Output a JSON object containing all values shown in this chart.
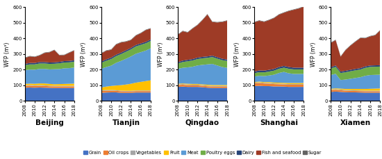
{
  "years": [
    2008,
    2009,
    2010,
    2011,
    2012,
    2013,
    2014,
    2015,
    2016,
    2017,
    2018
  ],
  "cities": [
    "Beijing",
    "Tianjin",
    "Qingdao",
    "Shanghai",
    "Xiamen"
  ],
  "categories": [
    "Grain",
    "Oil crops",
    "Vegetables",
    "Fruit",
    "Meat",
    "Poultry eggs",
    "Dairy",
    "Fish and seafood",
    "Sugar"
  ],
  "colors": [
    "#4472C4",
    "#ED7D31",
    "#A5A5A5",
    "#FFC000",
    "#5B9BD5",
    "#70AD47",
    "#264478",
    "#9E3B26",
    "#636363"
  ],
  "ylabel": "WFP (m³)",
  "data": {
    "Beijing": {
      "Grain": [
        85,
        86,
        85,
        86,
        85,
        84,
        83,
        83,
        83,
        83,
        83
      ],
      "Oil crops": [
        12,
        12,
        11,
        11,
        11,
        10,
        10,
        10,
        10,
        10,
        10
      ],
      "Vegetables": [
        4,
        4,
        4,
        4,
        4,
        4,
        4,
        4,
        4,
        4,
        4
      ],
      "Fruit": [
        8,
        9,
        10,
        11,
        12,
        11,
        10,
        11,
        12,
        13,
        14
      ],
      "Meat": [
        88,
        90,
        90,
        93,
        93,
        93,
        96,
        96,
        100,
        100,
        103
      ],
      "Poultry eggs": [
        32,
        33,
        34,
        35,
        35,
        35,
        35,
        37,
        37,
        37,
        37
      ],
      "Dairy": [
        8,
        9,
        9,
        9,
        9,
        9,
        9,
        9,
        9,
        9,
        9
      ],
      "Fish and seafood": [
        38,
        42,
        38,
        42,
        58,
        65,
        78,
        42,
        38,
        52,
        62
      ],
      "Sugar": [
        3,
        3,
        3,
        3,
        3,
        3,
        3,
        3,
        3,
        3,
        3
      ]
    },
    "Tianjin": {
      "Grain": [
        52,
        54,
        55,
        55,
        52,
        52,
        52,
        54,
        54,
        54,
        54
      ],
      "Oil crops": [
        12,
        12,
        11,
        10,
        10,
        9,
        9,
        9,
        9,
        9,
        9
      ],
      "Vegetables": [
        4,
        4,
        4,
        4,
        4,
        4,
        4,
        4,
        4,
        4,
        4
      ],
      "Fruit": [
        18,
        22,
        26,
        30,
        35,
        40,
        45,
        50,
        55,
        60,
        65
      ],
      "Meat": [
        120,
        125,
        130,
        145,
        155,
        165,
        175,
        185,
        190,
        195,
        205
      ],
      "Poultry eggs": [
        38,
        40,
        42,
        43,
        44,
        45,
        45,
        47,
        47,
        47,
        47
      ],
      "Dairy": [
        8,
        9,
        9,
        9,
        9,
        9,
        9,
        9,
        9,
        9,
        9
      ],
      "Fish and seafood": [
        52,
        55,
        50,
        65,
        65,
        55,
        50,
        60,
        65,
        75,
        70
      ],
      "Sugar": [
        3,
        3,
        3,
        3,
        3,
        3,
        3,
        3,
        3,
        3,
        3
      ]
    },
    "Qingdao": {
      "Grain": [
        90,
        92,
        90,
        90,
        90,
        88,
        85,
        83,
        83,
        83,
        83
      ],
      "Oil crops": [
        12,
        12,
        11,
        10,
        10,
        9,
        9,
        9,
        9,
        9,
        9
      ],
      "Vegetables": [
        4,
        4,
        4,
        4,
        4,
        4,
        4,
        4,
        4,
        4,
        4
      ],
      "Fruit": [
        4,
        4,
        5,
        5,
        5,
        5,
        6,
        6,
        6,
        6,
        6
      ],
      "Meat": [
        95,
        100,
        105,
        110,
        118,
        125,
        130,
        135,
        125,
        115,
        110
      ],
      "Poultry eggs": [
        35,
        37,
        39,
        40,
        41,
        42,
        42,
        44,
        44,
        44,
        44
      ],
      "Dairy": [
        8,
        9,
        9,
        9,
        9,
        9,
        9,
        9,
        9,
        9,
        9
      ],
      "Fish and seafood": [
        175,
        188,
        175,
        195,
        208,
        235,
        268,
        215,
        222,
        235,
        248
      ],
      "Sugar": [
        3,
        3,
        3,
        3,
        3,
        3,
        3,
        3,
        3,
        3,
        3
      ]
    },
    "Shanghai": {
      "Grain": [
        95,
        97,
        95,
        95,
        93,
        93,
        92,
        90,
        90,
        90,
        90
      ],
      "Oil crops": [
        18,
        18,
        17,
        16,
        15,
        14,
        14,
        14,
        14,
        14,
        14
      ],
      "Vegetables": [
        4,
        4,
        4,
        4,
        4,
        4,
        4,
        4,
        4,
        4,
        4
      ],
      "Fruit": [
        4,
        5,
        5,
        6,
        6,
        6,
        6,
        7,
        7,
        7,
        7
      ],
      "Meat": [
        35,
        37,
        38,
        42,
        50,
        62,
        70,
        62,
        58,
        58,
        58
      ],
      "Poultry eggs": [
        22,
        23,
        24,
        25,
        26,
        27,
        27,
        29,
        29,
        29,
        29
      ],
      "Dairy": [
        10,
        11,
        11,
        11,
        11,
        11,
        11,
        11,
        11,
        11,
        11
      ],
      "Fish and seafood": [
        315,
        318,
        312,
        318,
        325,
        335,
        340,
        358,
        370,
        378,
        390
      ],
      "Sugar": [
        3,
        3,
        3,
        3,
        3,
        3,
        3,
        3,
        3,
        3,
        3
      ]
    },
    "Xiamen": {
      "Grain": [
        58,
        60,
        58,
        56,
        55,
        55,
        54,
        53,
        53,
        53,
        53
      ],
      "Oil crops": [
        12,
        12,
        11,
        10,
        10,
        9,
        9,
        9,
        9,
        9,
        9
      ],
      "Vegetables": [
        4,
        4,
        4,
        4,
        4,
        4,
        4,
        4,
        4,
        4,
        4
      ],
      "Fruit": [
        4,
        5,
        6,
        7,
        8,
        9,
        10,
        11,
        12,
        13,
        14
      ],
      "Meat": [
        88,
        93,
        55,
        60,
        65,
        70,
        75,
        84,
        88,
        88,
        88
      ],
      "Poultry eggs": [
        42,
        44,
        45,
        47,
        48,
        49,
        49,
        51,
        52,
        52,
        52
      ],
      "Dairy": [
        8,
        9,
        9,
        9,
        9,
        9,
        9,
        9,
        9,
        9,
        9
      ],
      "Fish and seafood": [
        155,
        162,
        95,
        132,
        155,
        174,
        192,
        180,
        186,
        192,
        222
      ],
      "Sugar": [
        3,
        3,
        3,
        3,
        3,
        3,
        3,
        3,
        3,
        3,
        3
      ]
    }
  }
}
